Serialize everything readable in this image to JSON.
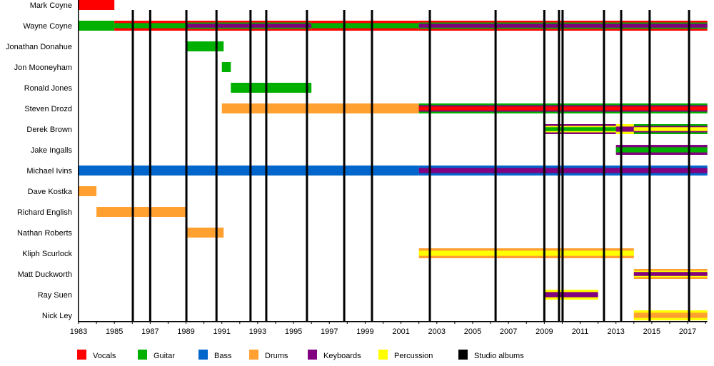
{
  "chart_data": {
    "type": "timeline",
    "title": "",
    "xlim": [
      1983,
      2018.1
    ],
    "x_ticks": [
      1983,
      1985,
      1987,
      1989,
      1991,
      1993,
      1995,
      1997,
      1999,
      2001,
      2003,
      2005,
      2007,
      2009,
      2011,
      2013,
      2015,
      2017
    ],
    "colors": {
      "vocals": "#ff0000",
      "guitar": "#00b000",
      "bass": "#0066cc",
      "drums": "#ffa030",
      "keyboards": "#800080",
      "percussion": "#ffff00",
      "albums": "#000000"
    },
    "legend": [
      {
        "key": "vocals",
        "label": "Vocals"
      },
      {
        "key": "guitar",
        "label": "Guitar"
      },
      {
        "key": "bass",
        "label": "Bass"
      },
      {
        "key": "drums",
        "label": "Drums"
      },
      {
        "key": "keyboards",
        "label": "Keyboards"
      },
      {
        "key": "percussion",
        "label": "Percussion"
      },
      {
        "key": "albums",
        "label": "Studio albums"
      }
    ],
    "legend_position": "bottom",
    "studio_albums": [
      1986.03,
      1987.0,
      1989.02,
      1990.7,
      1992.6,
      1993.48,
      1995.75,
      1997.83,
      1999.38,
      2002.61,
      2006.28,
      2009.0,
      2009.82,
      2010.02,
      2012.33,
      2013.29,
      2014.88,
      2017.08
    ],
    "members": [
      {
        "name": "Mark Coyne",
        "segments": [
          {
            "start": 1983,
            "end": 1985,
            "roles": [
              "vocals"
            ]
          }
        ]
      },
      {
        "name": "Wayne Coyne",
        "segments": [
          {
            "start": 1983,
            "end": 1985,
            "roles": [
              "guitar"
            ]
          },
          {
            "start": 1985,
            "end": 1989,
            "roles": [
              "vocals",
              "guitar"
            ]
          },
          {
            "start": 1989,
            "end": 1996,
            "roles": [
              "vocals",
              "guitar",
              "keyboards"
            ]
          },
          {
            "start": 1996,
            "end": 2002,
            "roles": [
              "vocals",
              "guitar"
            ]
          },
          {
            "start": 2002,
            "end": 2018.1,
            "roles": [
              "vocals",
              "guitar",
              "keyboards"
            ]
          }
        ]
      },
      {
        "name": "Jonathan Donahue",
        "segments": [
          {
            "start": 1989,
            "end": 1991.1,
            "roles": [
              "guitar"
            ]
          }
        ]
      },
      {
        "name": "Jon Mooneyham",
        "segments": [
          {
            "start": 1991,
            "end": 1991.5,
            "roles": [
              "guitar"
            ]
          }
        ]
      },
      {
        "name": "Ronald Jones",
        "segments": [
          {
            "start": 1991.5,
            "end": 1996,
            "roles": [
              "guitar"
            ]
          }
        ]
      },
      {
        "name": "Steven Drozd",
        "segments": [
          {
            "start": 1991,
            "end": 2002,
            "roles": [
              "drums"
            ]
          },
          {
            "start": 2002,
            "end": 2018.1,
            "roles": [
              "guitar",
              "keyboards",
              "vocals"
            ]
          }
        ]
      },
      {
        "name": "Derek Brown",
        "segments": [
          {
            "start": 2009,
            "end": 2013,
            "roles": [
              "keyboards",
              "percussion",
              "guitar"
            ]
          },
          {
            "start": 2013,
            "end": 2014,
            "roles": [
              "percussion",
              "keyboards"
            ]
          },
          {
            "start": 2014,
            "end": 2018.1,
            "roles": [
              "guitar",
              "keyboards",
              "percussion"
            ]
          }
        ]
      },
      {
        "name": "Jake Ingalls",
        "segments": [
          {
            "start": 2013,
            "end": 2018.1,
            "roles": [
              "keyboards",
              "guitar"
            ]
          }
        ]
      },
      {
        "name": "Michael Ivins",
        "segments": [
          {
            "start": 1983,
            "end": 2002,
            "roles": [
              "bass"
            ]
          },
          {
            "start": 2002,
            "end": 2018.1,
            "roles": [
              "bass",
              "keyboards"
            ]
          }
        ]
      },
      {
        "name": "Dave Kostka",
        "segments": [
          {
            "start": 1983,
            "end": 1984,
            "roles": [
              "drums"
            ]
          }
        ]
      },
      {
        "name": "Richard English",
        "segments": [
          {
            "start": 1984,
            "end": 1989,
            "roles": [
              "drums"
            ]
          }
        ]
      },
      {
        "name": "Nathan Roberts",
        "segments": [
          {
            "start": 1989,
            "end": 1991.1,
            "roles": [
              "drums"
            ]
          }
        ]
      },
      {
        "name": "Kliph Scurlock",
        "segments": [
          {
            "start": 2002,
            "end": 2014,
            "roles": [
              "drums",
              "percussion"
            ]
          }
        ]
      },
      {
        "name": "Matt Duckworth",
        "segments": [
          {
            "start": 2014,
            "end": 2018.1,
            "roles": [
              "drums",
              "percussion",
              "keyboards"
            ]
          }
        ]
      },
      {
        "name": "Ray Suen",
        "segments": [
          {
            "start": 2009,
            "end": 2012,
            "roles": [
              "percussion",
              "keyboards"
            ]
          }
        ]
      },
      {
        "name": "Nick Ley",
        "segments": [
          {
            "start": 2014,
            "end": 2018.1,
            "roles": [
              "percussion",
              "drums"
            ]
          }
        ]
      }
    ]
  }
}
